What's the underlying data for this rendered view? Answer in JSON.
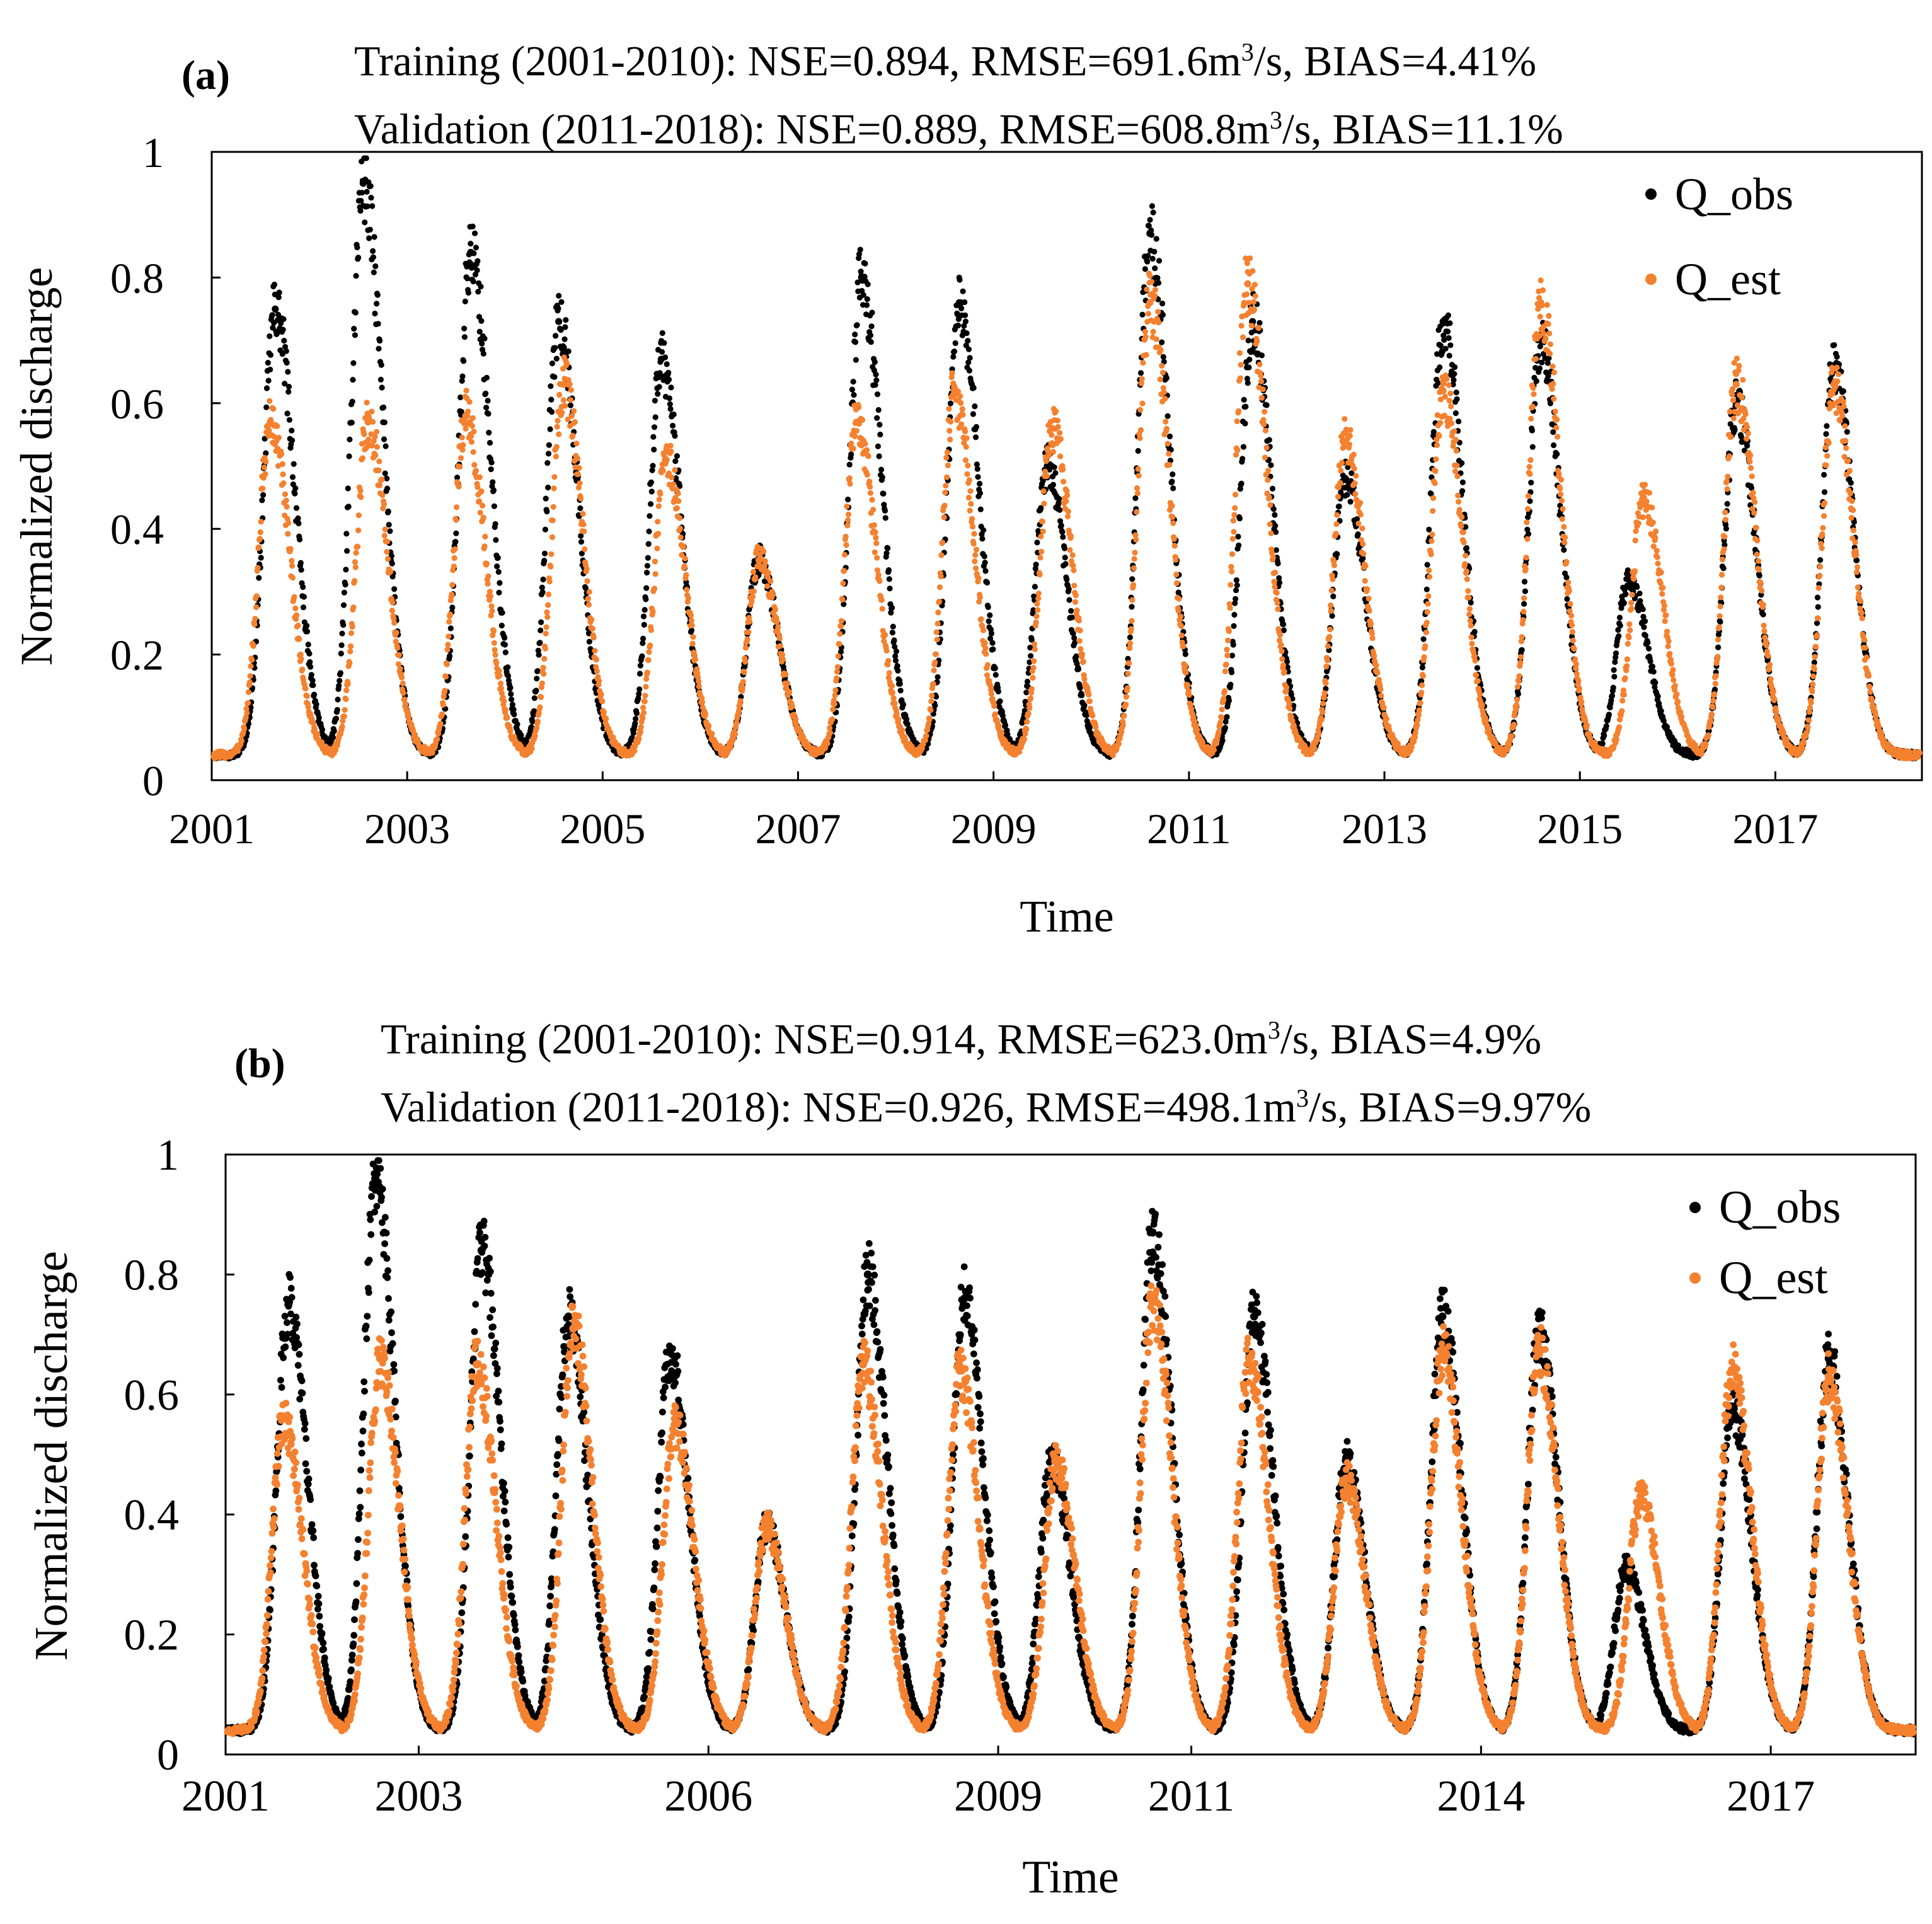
{
  "chart_data": [
    {
      "type": "scatter",
      "panel_label": "(a)",
      "stats": {
        "training": [
          "Training (2001-2010): NSE=0.894, RMSE=691.6m",
          "3",
          "/s, BIAS=4.41%"
        ],
        "validation": [
          "Validation (2011-2018): NSE=0.889, RMSE=608.8m",
          "3",
          "/s, BIAS=11.1%"
        ]
      },
      "xlabel": "Time",
      "ylabel": "Normalized discharge",
      "xlim": [
        2001.0,
        2018.5
      ],
      "ylim": [
        0,
        1
      ],
      "yticks": [
        "0",
        "0.2",
        "0.4",
        "0.6",
        "0.8",
        "1"
      ],
      "xticks": [
        {
          "value": 2001,
          "label": "2001"
        },
        {
          "value": 2003,
          "label": "2003"
        },
        {
          "value": 2005,
          "label": "2005"
        },
        {
          "value": 2007,
          "label": "2007"
        },
        {
          "value": 2009,
          "label": "2009"
        },
        {
          "value": 2011,
          "label": "2011"
        },
        {
          "value": 2013,
          "label": "2013"
        },
        {
          "value": 2015,
          "label": "2015"
        },
        {
          "value": 2017,
          "label": "2017"
        }
      ],
      "legend": {
        "position": "top-right",
        "entries": [
          "Q_obs",
          "Q_est"
        ]
      },
      "colors": {
        "obs": "#000000",
        "est": "#f4812f"
      },
      "base_flow": 0.04,
      "series": [
        {
          "name": "Q_obs",
          "peaks": [
            {
              "t": 2001.65,
              "v": 0.75
            },
            {
              "t": 2002.55,
              "v": 0.95
            },
            {
              "t": 2003.65,
              "v": 0.84
            },
            {
              "t": 2004.55,
              "v": 0.73
            },
            {
              "t": 2005.6,
              "v": 0.67
            },
            {
              "t": 2006.6,
              "v": 0.35
            },
            {
              "t": 2007.65,
              "v": 0.8
            },
            {
              "t": 2008.65,
              "v": 0.76
            },
            {
              "t": 2009.55,
              "v": 0.5
            },
            {
              "t": 2010.6,
              "v": 0.87
            },
            {
              "t": 2011.65,
              "v": 0.73
            },
            {
              "t": 2012.6,
              "v": 0.48
            },
            {
              "t": 2013.6,
              "v": 0.73
            },
            {
              "t": 2014.6,
              "v": 0.7
            },
            {
              "t": 2015.5,
              "v": 0.32
            },
            {
              "t": 2016.6,
              "v": 0.6
            },
            {
              "t": 2017.6,
              "v": 0.66
            }
          ]
        },
        {
          "name": "Q_est",
          "peaks": [
            {
              "t": 2001.6,
              "v": 0.57
            },
            {
              "t": 2002.6,
              "v": 0.57
            },
            {
              "t": 2003.6,
              "v": 0.58
            },
            {
              "t": 2004.6,
              "v": 0.63
            },
            {
              "t": 2005.65,
              "v": 0.51
            },
            {
              "t": 2006.6,
              "v": 0.35
            },
            {
              "t": 2007.6,
              "v": 0.57
            },
            {
              "t": 2008.6,
              "v": 0.62
            },
            {
              "t": 2009.6,
              "v": 0.56
            },
            {
              "t": 2010.6,
              "v": 0.76
            },
            {
              "t": 2011.6,
              "v": 0.79
            },
            {
              "t": 2012.6,
              "v": 0.54
            },
            {
              "t": 2013.6,
              "v": 0.62
            },
            {
              "t": 2014.6,
              "v": 0.76
            },
            {
              "t": 2015.65,
              "v": 0.45
            },
            {
              "t": 2016.6,
              "v": 0.63
            },
            {
              "t": 2017.6,
              "v": 0.63
            }
          ]
        }
      ]
    },
    {
      "type": "scatter",
      "panel_label": "(b)",
      "stats": {
        "training": [
          "Training (2001-2010): NSE=0.914, RMSE=623.0m",
          "3",
          "/s, BIAS=4.9%"
        ],
        "validation": [
          "Validation (2011-2018): NSE=0.926, RMSE=498.1m",
          "3",
          "/s, BIAS=9.97%"
        ]
      },
      "xlabel": "Time",
      "ylabel": "Normalized discharge",
      "xlim": [
        2001.0,
        2018.5
      ],
      "ylim": [
        0,
        1
      ],
      "yticks": [
        "0",
        "0.2",
        "0.4",
        "0.6",
        "0.8",
        "1"
      ],
      "xticks": [
        {
          "value": 2001,
          "label": "2001"
        },
        {
          "value": 2003,
          "label": "2003"
        },
        {
          "value": 2006,
          "label": "2006"
        },
        {
          "value": 2009,
          "label": "2009"
        },
        {
          "value": 2011,
          "label": "2011"
        },
        {
          "value": 2014,
          "label": "2014"
        },
        {
          "value": 2017,
          "label": "2017"
        }
      ],
      "legend": {
        "position": "top-right",
        "entries": [
          "Q_obs",
          "Q_est"
        ]
      },
      "colors": {
        "obs": "#000000",
        "est": "#f4812f"
      },
      "base_flow": 0.04,
      "series": [
        {
          "name": "Q_obs",
          "peaks": [
            {
              "t": 2001.65,
              "v": 0.75
            },
            {
              "t": 2002.55,
              "v": 0.96
            },
            {
              "t": 2003.65,
              "v": 0.84
            },
            {
              "t": 2004.55,
              "v": 0.73
            },
            {
              "t": 2005.6,
              "v": 0.67
            },
            {
              "t": 2006.6,
              "v": 0.38
            },
            {
              "t": 2007.65,
              "v": 0.8
            },
            {
              "t": 2008.65,
              "v": 0.76
            },
            {
              "t": 2009.55,
              "v": 0.49
            },
            {
              "t": 2010.6,
              "v": 0.87
            },
            {
              "t": 2011.65,
              "v": 0.73
            },
            {
              "t": 2012.6,
              "v": 0.49
            },
            {
              "t": 2013.6,
              "v": 0.73
            },
            {
              "t": 2014.6,
              "v": 0.7
            },
            {
              "t": 2015.5,
              "v": 0.31
            },
            {
              "t": 2016.6,
              "v": 0.58
            },
            {
              "t": 2017.6,
              "v": 0.66
            }
          ]
        },
        {
          "name": "Q_est",
          "peaks": [
            {
              "t": 2001.6,
              "v": 0.56
            },
            {
              "t": 2002.6,
              "v": 0.66
            },
            {
              "t": 2003.6,
              "v": 0.65
            },
            {
              "t": 2004.6,
              "v": 0.71
            },
            {
              "t": 2005.65,
              "v": 0.55
            },
            {
              "t": 2006.6,
              "v": 0.38
            },
            {
              "t": 2007.6,
              "v": 0.65
            },
            {
              "t": 2008.6,
              "v": 0.64
            },
            {
              "t": 2009.6,
              "v": 0.49
            },
            {
              "t": 2010.6,
              "v": 0.76
            },
            {
              "t": 2011.6,
              "v": 0.66
            },
            {
              "t": 2012.6,
              "v": 0.46
            },
            {
              "t": 2013.6,
              "v": 0.67
            },
            {
              "t": 2014.6,
              "v": 0.67
            },
            {
              "t": 2015.65,
              "v": 0.43
            },
            {
              "t": 2016.6,
              "v": 0.64
            },
            {
              "t": 2017.6,
              "v": 0.63
            }
          ]
        }
      ]
    }
  ]
}
